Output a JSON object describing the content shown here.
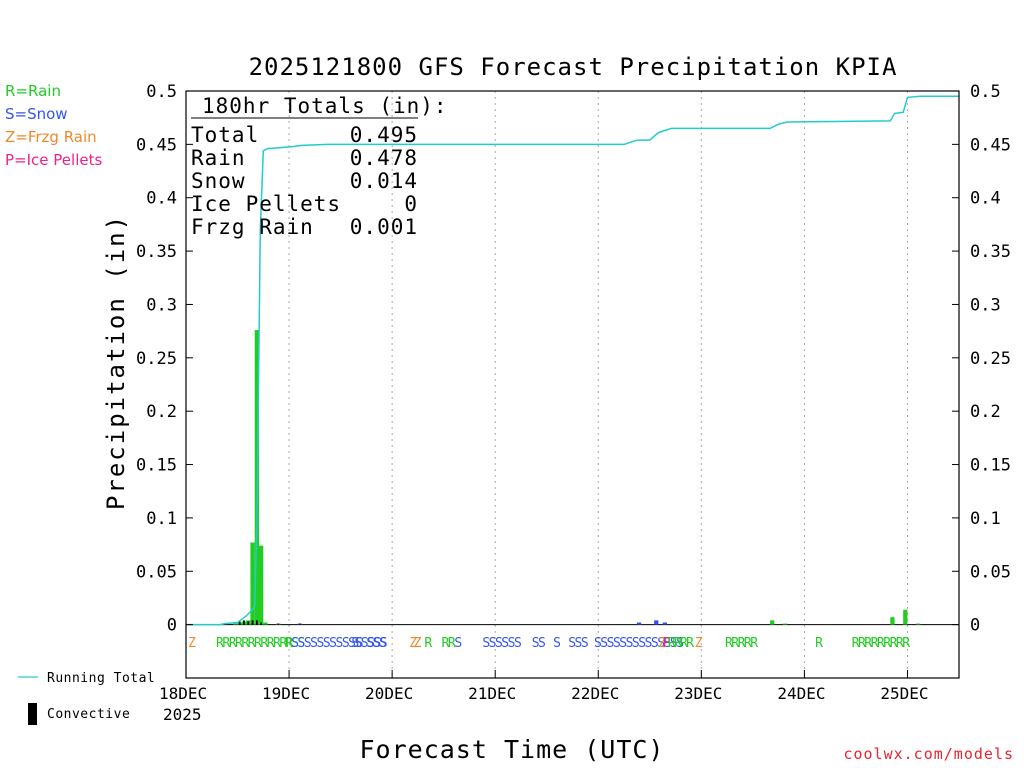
{
  "chart_data": {
    "type": "bar",
    "title": "2025121800 GFS Forecast Precipitation KPIA",
    "ylabel": "Precipitation (in)",
    "xlabel": "Forecast Time (UTC)",
    "ylim": [
      -0.05,
      0.5
    ],
    "xlim_hours": [
      0,
      180
    ],
    "yticks": [
      0,
      0.05,
      0.1,
      0.15,
      0.2,
      0.25,
      0.3,
      0.35,
      0.4,
      0.45,
      0.5
    ],
    "ytick_labels": [
      "0",
      "0.05",
      "0.1",
      "0.15",
      "0.2",
      "0.25",
      "0.3",
      "0.35",
      "0.4",
      "0.45",
      "0.5"
    ],
    "xticks": [
      {
        "hour": 0,
        "label": "18DEC",
        "sub": "2025"
      },
      {
        "hour": 24,
        "label": "19DEC"
      },
      {
        "hour": 48,
        "label": "20DEC"
      },
      {
        "hour": 72,
        "label": "21DEC"
      },
      {
        "hour": 96,
        "label": "22DEC"
      },
      {
        "hour": 120,
        "label": "23DEC"
      },
      {
        "hour": 144,
        "label": "24DEC"
      },
      {
        "hour": 168,
        "label": "25DEC"
      }
    ],
    "totals_box": {
      "heading": "180hr Totals (in):",
      "rows": [
        {
          "label": "Total",
          "value": "0.495"
        },
        {
          "label": "Rain",
          "value": "0.478"
        },
        {
          "label": "Snow",
          "value": "0.014"
        },
        {
          "label": "Ice Pellets",
          "value": "0"
        },
        {
          "label": "Frzg Rain",
          "value": "0.001"
        }
      ]
    },
    "type_legend": [
      {
        "label": "R=Rain",
        "color": "#22cc22"
      },
      {
        "label": "S=Snow",
        "color": "#3355ee"
      },
      {
        "label": "Z=Frzg Rain",
        "color": "#f0882a"
      },
      {
        "label": "P=Ice Pellets",
        "color": "#ee2288"
      }
    ],
    "series_legend": [
      {
        "label": "Running Total",
        "color": "#22cccc",
        "kind": "line"
      },
      {
        "label": "Convective",
        "color": "#000000",
        "kind": "bar"
      }
    ],
    "bars": [
      {
        "hour": 9,
        "value": 0.001,
        "type": "R"
      },
      {
        "hour": 12,
        "value": 0.001,
        "type": "R"
      },
      {
        "hour": 13,
        "value": 0.002,
        "type": "R"
      },
      {
        "hour": 14,
        "value": 0.003,
        "type": "R"
      },
      {
        "hour": 15,
        "value": 0.004,
        "type": "R"
      },
      {
        "hour": 16,
        "value": 0.077,
        "type": "R"
      },
      {
        "hour": 17,
        "value": 0.276,
        "type": "R"
      },
      {
        "hour": 18,
        "value": 0.074,
        "type": "R"
      },
      {
        "hour": 19,
        "value": 0.002,
        "type": "R"
      },
      {
        "hour": 22,
        "value": 0.001,
        "type": "R"
      },
      {
        "hour": 27,
        "value": 0.001,
        "type": "S"
      },
      {
        "hour": 106,
        "value": 0.002,
        "type": "S"
      },
      {
        "hour": 110,
        "value": 0.004,
        "type": "S"
      },
      {
        "hour": 112,
        "value": 0.002,
        "type": "S"
      },
      {
        "hour": 137,
        "value": 0.004,
        "type": "R"
      },
      {
        "hour": 140,
        "value": 0.001,
        "type": "R"
      },
      {
        "hour": 165,
        "value": 0.007,
        "type": "R"
      },
      {
        "hour": 168,
        "value": 0.014,
        "type": "R"
      },
      {
        "hour": 171,
        "value": 0.001,
        "type": "R"
      }
    ],
    "convective": [
      {
        "hour": 13,
        "value": 0.003
      },
      {
        "hour": 14,
        "value": 0.004
      },
      {
        "hour": 15,
        "value": 0.003
      },
      {
        "hour": 16,
        "value": 0.004
      },
      {
        "hour": 17,
        "value": 0.004
      },
      {
        "hour": 18,
        "value": 0.002
      },
      {
        "hour": 22,
        "value": 0.001
      },
      {
        "hour": 27,
        "value": 0.001
      }
    ],
    "running_total": [
      {
        "hour": 0,
        "value": 0
      },
      {
        "hour": 8,
        "value": 0
      },
      {
        "hour": 9,
        "value": 0.001
      },
      {
        "hour": 12,
        "value": 0.002
      },
      {
        "hour": 13,
        "value": 0.005
      },
      {
        "hour": 14,
        "value": 0.008
      },
      {
        "hour": 15,
        "value": 0.012
      },
      {
        "hour": 16,
        "value": 0.017
      },
      {
        "hour": 16.5,
        "value": 0.094
      },
      {
        "hour": 17.3,
        "value": 0.37
      },
      {
        "hour": 18,
        "value": 0.444
      },
      {
        "hour": 19,
        "value": 0.446
      },
      {
        "hour": 22,
        "value": 0.447
      },
      {
        "hour": 25,
        "value": 0.448
      },
      {
        "hour": 27,
        "value": 0.449
      },
      {
        "hour": 33,
        "value": 0.45
      },
      {
        "hour": 102,
        "value": 0.45
      },
      {
        "hour": 105,
        "value": 0.454
      },
      {
        "hour": 108,
        "value": 0.454
      },
      {
        "hour": 110,
        "value": 0.461
      },
      {
        "hour": 113,
        "value": 0.465
      },
      {
        "hour": 136,
        "value": 0.465
      },
      {
        "hour": 138,
        "value": 0.469
      },
      {
        "hour": 140,
        "value": 0.471
      },
      {
        "hour": 164,
        "value": 0.472
      },
      {
        "hour": 165,
        "value": 0.479
      },
      {
        "hour": 167,
        "value": 0.48
      },
      {
        "hour": 168,
        "value": 0.494
      },
      {
        "hour": 171,
        "value": 0.495
      },
      {
        "hour": 180,
        "value": 0.495
      }
    ],
    "type_markers": [
      {
        "hour": 0.5,
        "text": "Z",
        "type": "Z"
      },
      {
        "hour": 7,
        "text": "RRRRRRRRRRRR",
        "type": "R"
      },
      {
        "hour": 23,
        "text": "RSS",
        "type": "R"
      },
      {
        "hour": 24.5,
        "text": "SSSSSSSSSSSSSSS",
        "type": "S"
      },
      {
        "hour": 38.5,
        "text": "S",
        "type": "S"
      },
      {
        "hour": 39.5,
        "text": "S",
        "type": "S"
      },
      {
        "hour": 42,
        "text": "SSS",
        "type": "S"
      },
      {
        "hour": 52,
        "text": "Z",
        "type": "Z"
      },
      {
        "hour": 53,
        "text": "Z",
        "type": "Z"
      },
      {
        "hour": 55.5,
        "text": "R",
        "type": "R"
      },
      {
        "hour": 59.5,
        "text": "RR",
        "type": "R"
      },
      {
        "hour": 62.5,
        "text": "S",
        "type": "S"
      },
      {
        "hour": 69,
        "text": "SSSSSS",
        "type": "S"
      },
      {
        "hour": 80.5,
        "text": "SS",
        "type": "S"
      },
      {
        "hour": 85.5,
        "text": "S",
        "type": "S"
      },
      {
        "hour": 89,
        "text": "SSS",
        "type": "S"
      },
      {
        "hour": 95,
        "text": "SSSSSSSSSSSSSS",
        "type": "S"
      },
      {
        "hour": 110,
        "text": "Z",
        "type": "Z"
      },
      {
        "hour": 111,
        "text": "P",
        "type": "P"
      },
      {
        "hour": 112.2,
        "text": "RR",
        "type": "R"
      },
      {
        "hour": 115,
        "text": "RR",
        "type": "R"
      },
      {
        "hour": 118.5,
        "text": "Z",
        "type": "Z"
      },
      {
        "hour": 125.5,
        "text": "RRRRR",
        "type": "R"
      },
      {
        "hour": 146.5,
        "text": "R",
        "type": "R"
      },
      {
        "hour": 155,
        "text": "RRRRRRRRR",
        "type": "R"
      }
    ],
    "colors": {
      "R": "#22cc22",
      "S": "#3355ee",
      "Z": "#f0882a",
      "P": "#ee2288",
      "running_total": "#22cccc",
      "convective": "#000000",
      "axis": "#000000",
      "grid": "#aaaaaa"
    }
  },
  "credit": "coolwx.com/models"
}
